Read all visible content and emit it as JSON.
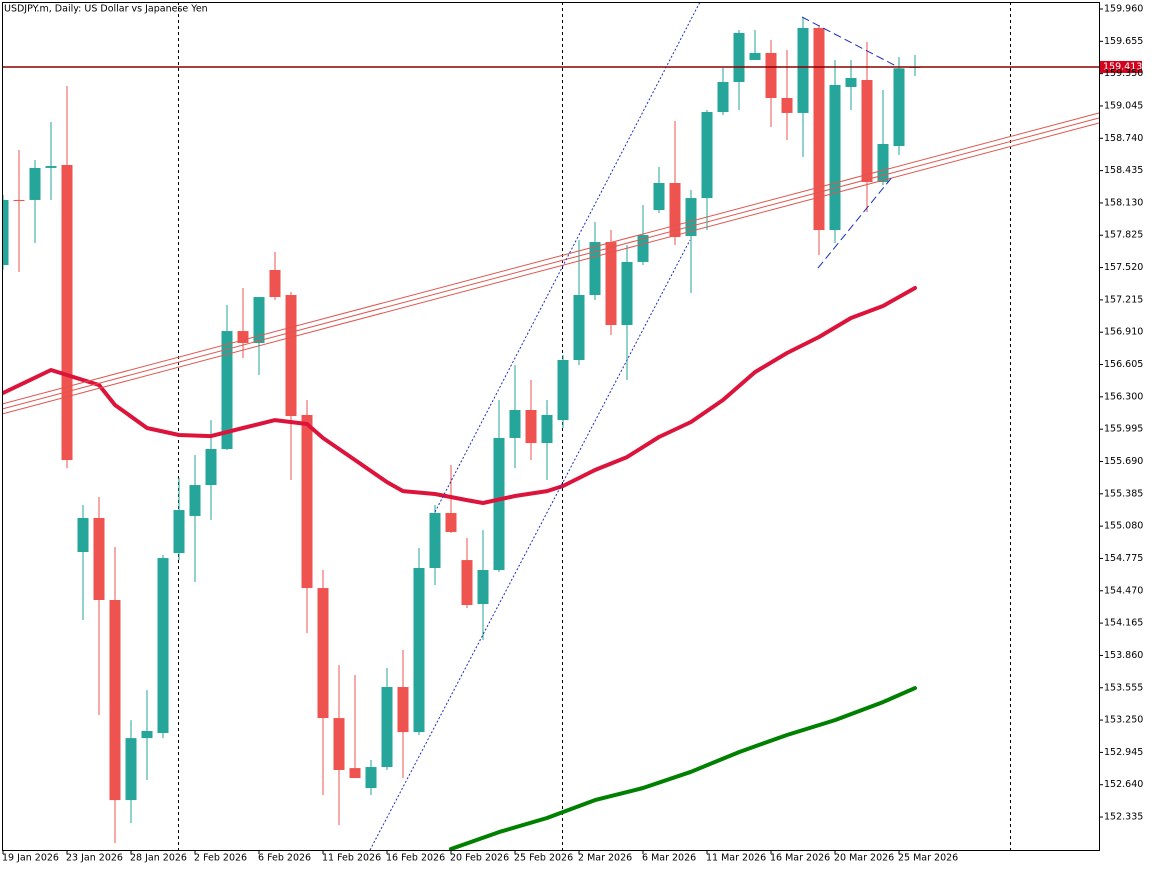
{
  "chart_data": {
    "type": "candlestick",
    "title": "USDJPY.m, Daily:  US Dollar vs Japanese Yen",
    "xlim": [
      -0.0625,
      68.5
    ],
    "ylim": [
      152.024,
      160.026
    ],
    "up_color": "#26a69a",
    "down_color": "#ef5350",
    "yticks": [
      {
        "value": 159.96,
        "label": "159.960"
      },
      159.655,
      {
        "value": 159.35,
        "label": "159.350"
      },
      159.045,
      {
        "value": 158.74,
        "label": "158.740"
      },
      158.435,
      {
        "value": 158.13,
        "label": "158.130"
      },
      157.825,
      {
        "value": 157.52,
        "label": "157.520"
      },
      157.215,
      {
        "value": 156.91,
        "label": "156.910"
      },
      156.605,
      {
        "value": 156.3,
        "label": "156.300"
      },
      155.995,
      {
        "value": 155.69,
        "label": "155.690"
      },
      155.385,
      {
        "value": 155.08,
        "label": "155.080"
      },
      154.775,
      {
        "value": 154.47,
        "label": "154.470"
      },
      154.165,
      {
        "value": 153.86,
        "label": "153.860"
      },
      153.555,
      {
        "value": 153.25,
        "label": "153.250"
      },
      152.945,
      {
        "value": 152.64,
        "label": "152.640"
      },
      152.335
    ],
    "xticks": [
      {
        "value": 0,
        "label": "19 Jan 2026"
      },
      {
        "value": 4,
        "label": "23 Jan 2026"
      },
      {
        "value": 8,
        "label": "28 Jan 2026"
      },
      {
        "value": 12,
        "label": "2 Feb 2026"
      },
      {
        "value": 16,
        "label": "6 Feb 2026"
      },
      {
        "value": 20,
        "label": "11 Feb 2026"
      },
      {
        "value": 24,
        "label": "16 Feb 2026"
      },
      {
        "value": 28,
        "label": "20 Feb 2026"
      },
      {
        "value": 32,
        "label": "25 Feb 2026"
      },
      {
        "value": 36,
        "label": "2 Mar 2026"
      },
      {
        "value": 40,
        "label": "6 Mar 2026"
      },
      {
        "value": 44,
        "label": "11 Mar 2026"
      },
      {
        "value": 48,
        "label": "16 Mar 2026"
      },
      {
        "value": 52,
        "label": "20 Mar 2026"
      },
      {
        "value": 56,
        "label": "25 Mar 2026"
      }
    ],
    "last_price": 159.413,
    "last_price_color": "#d5001c",
    "candles": {
      "open": [
        157.544,
        158.158,
        158.158,
        158.46,
        158.488,
        154.836,
        155.157,
        154.383,
        152.495,
        153.08,
        153.128,
        154.826,
        155.176,
        155.468,
        155.808,
        156.921,
        156.808,
        157.497,
        157.261,
        156.129,
        154.496,
        153.269,
        152.797,
        152.609,
        152.807,
        153.562,
        153.137,
        154.685,
        155.204,
        154.76,
        154.345,
        154.666,
        155.912,
        156.176,
        155.864,
        156.081,
        156.648,
        157.261,
        157.761,
        156.978,
        157.573,
        158.063,
        158.318,
        157.818,
        158.176,
        158.988,
        159.271,
        159.479,
        159.545,
        159.12,
        158.979,
        159.781,
        157.874,
        159.224,
        159.29,
        158.327,
        158.667,
        159.405
      ],
      "high": [
        158.205,
        158.629,
        158.535,
        158.894,
        159.233,
        155.279,
        155.355,
        154.883,
        153.25,
        153.533,
        154.808,
        155.534,
        155.751,
        156.081,
        157.167,
        157.327,
        157.242,
        157.667,
        157.289,
        156.27,
        154.666,
        153.769,
        153.675,
        152.873,
        153.741,
        153.911,
        154.874,
        155.279,
        155.657,
        154.968,
        155.043,
        156.27,
        156.6,
        156.459,
        156.27,
        156.695,
        157.78,
        157.95,
        157.874,
        157.733,
        158.11,
        158.469,
        158.903,
        158.252,
        159.007,
        159.403,
        159.762,
        159.762,
        159.668,
        159.573,
        159.875,
        159.809,
        159.479,
        159.479,
        159.649,
        159.196,
        159.507,
        159.526
      ],
      "low": [
        157.497,
        157.478,
        157.752,
        158.158,
        155.628,
        154.194,
        153.298,
        152.09,
        152.278,
        152.684,
        153.08,
        154.76,
        154.553,
        155.138,
        155.798,
        156.667,
        156.506,
        157.214,
        155.515,
        154.071,
        152.543,
        152.259,
        152.703,
        152.543,
        152.779,
        152.703,
        153.109,
        154.524,
        155.015,
        154.307,
        154.005,
        154.647,
        155.628,
        155.704,
        155.515,
        156.006,
        156.6,
        157.214,
        156.884,
        156.459,
        157.544,
        158.035,
        157.733,
        157.28,
        157.874,
        158.96,
        159.007,
        159.479,
        158.847,
        158.724,
        158.563,
        157.639,
        157.752,
        159.007,
        158.044,
        158.299,
        158.582,
        159.328
      ],
      "close": [
        158.158,
        158.148,
        158.46,
        158.478,
        155.704,
        155.157,
        154.383,
        152.495,
        153.08,
        153.147,
        154.779,
        155.232,
        155.468,
        155.808,
        156.921,
        156.808,
        157.242,
        157.242,
        156.119,
        154.496,
        153.269,
        152.779,
        152.703,
        152.807,
        153.562,
        153.137,
        154.685,
        155.204,
        155.025,
        154.336,
        154.666,
        155.912,
        156.176,
        155.864,
        156.129,
        156.648,
        157.261,
        157.761,
        156.978,
        157.573,
        157.827,
        158.318,
        157.808,
        158.176,
        158.988,
        159.271,
        159.734,
        159.545,
        159.12,
        158.979,
        159.781,
        157.874,
        159.243,
        159.309,
        158.327,
        158.686,
        159.4,
        159.413
      ]
    },
    "series": [
      {
        "color": "#dc143c",
        "x": [
          0,
          3,
          6,
          7,
          9,
          11,
          13,
          15,
          17,
          19,
          20,
          22,
          24,
          25,
          27,
          29,
          30,
          32,
          34,
          35,
          37,
          39,
          41,
          43,
          45,
          47,
          49,
          51,
          53,
          55,
          57
        ],
        "values": [
          156.336,
          156.553,
          156.412,
          156.223,
          156.006,
          155.94,
          155.93,
          156.006,
          156.081,
          156.044,
          155.912,
          155.704,
          155.496,
          155.411,
          155.383,
          155.326,
          155.298,
          155.364,
          155.411,
          155.459,
          155.61,
          155.732,
          155.921,
          156.063,
          156.27,
          156.534,
          156.714,
          156.865,
          157.044,
          157.157,
          157.327
        ]
      },
      {
        "color": "#008000",
        "x": [
          28,
          31,
          34,
          37,
          40,
          43,
          46,
          49,
          52,
          55,
          57
        ],
        "values": [
          152.033,
          152.193,
          152.326,
          152.495,
          152.609,
          152.762,
          152.948,
          153.109,
          153.25,
          153.42,
          153.552
        ]
      }
    ]
  }
}
